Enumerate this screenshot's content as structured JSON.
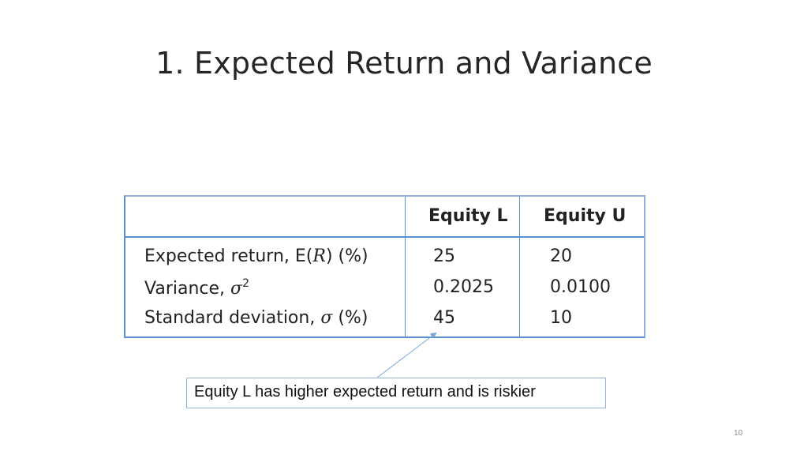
{
  "slide": {
    "title": "1. Expected Return and Variance",
    "page_number": "10"
  },
  "table": {
    "headers": [
      "",
      "Equity L",
      "Equity U"
    ],
    "rows": [
      {
        "label_pre": "Expected return, E(",
        "label_italic": "R",
        "label_post": ") (%)",
        "equity_l": "25",
        "equity_u": "20"
      },
      {
        "label_pre": "Variance, ",
        "label_italic": "σ",
        "label_sup": "2",
        "equity_l": "0.2025",
        "equity_u": "0.0100"
      },
      {
        "label_pre": "Standard deviation, ",
        "label_italic": "σ",
        "label_post": " (%)",
        "equity_l": "45",
        "equity_u": "10"
      }
    ]
  },
  "callout": {
    "text": "Equity L has higher expected return and is riskier"
  },
  "colors": {
    "table_border": "#5b8fcb",
    "callout_border": "#8fb3d9",
    "connector": "#7fa7d4"
  }
}
